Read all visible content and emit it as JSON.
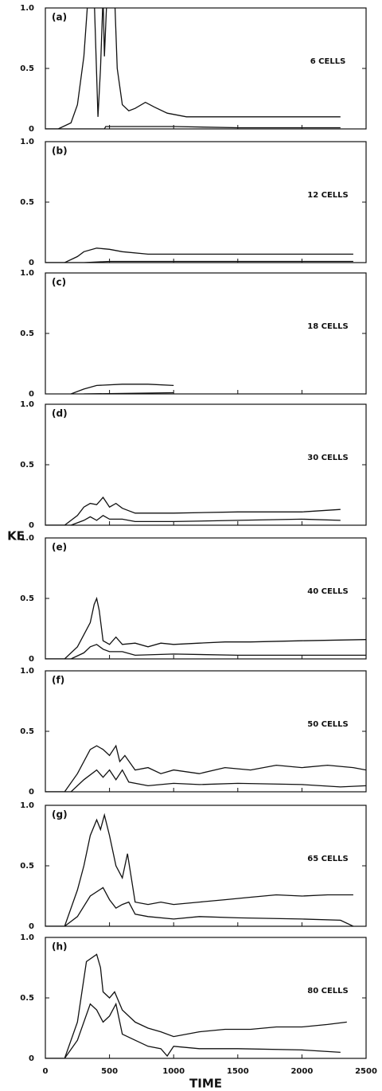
{
  "chart_data": [
    {
      "type": "line",
      "panel_label": "(a)",
      "annotation": "6 CELLS",
      "xlim": [
        0,
        2500
      ],
      "ylim": [
        0,
        1
      ],
      "xticks": [
        0,
        500,
        1000,
        1500,
        2000,
        2500
      ],
      "yticks": [
        0,
        0.5,
        {
          "value": 1,
          "label": "1.0"
        }
      ],
      "series": [
        {
          "color": "#111111",
          "x": [
            0,
            100,
            200,
            250,
            300,
            330,
            380,
            410,
            430,
            450,
            460,
            480,
            540,
            560,
            600,
            650,
            700,
            780,
            850,
            950,
            1100,
            1500,
            2000,
            2300
          ],
          "values": [
            0,
            0,
            0.05,
            0.2,
            0.6,
            1.05,
            1.1,
            0.1,
            0.5,
            1.1,
            0.6,
            1.1,
            1.1,
            0.5,
            0.2,
            0.15,
            0.17,
            0.22,
            0.18,
            0.13,
            0.1,
            0.1,
            0.1,
            0.1
          ]
        },
        {
          "color": "#111111",
          "x": [
            0,
            400,
            460,
            470,
            1000,
            1500,
            2300
          ],
          "values": [
            0,
            0,
            0,
            0.02,
            0.02,
            0.01,
            0.01
          ]
        }
      ]
    },
    {
      "type": "line",
      "panel_label": "(b)",
      "annotation": "12 CELLS",
      "xlim": [
        0,
        2500
      ],
      "ylim": [
        0,
        1
      ],
      "xticks": [
        0,
        500,
        1000,
        1500,
        2000,
        2500
      ],
      "yticks": [
        0,
        0.5,
        {
          "value": 1,
          "label": "1.0"
        }
      ],
      "series": [
        {
          "color": "#111111",
          "x": [
            0,
            150,
            250,
            300,
            400,
            500,
            600,
            800,
            1000,
            1500,
            2000,
            2400
          ],
          "values": [
            0,
            0,
            0.05,
            0.09,
            0.12,
            0.11,
            0.09,
            0.07,
            0.07,
            0.07,
            0.07,
            0.07
          ]
        },
        {
          "color": "#111111",
          "x": [
            0,
            300,
            500,
            2400
          ],
          "values": [
            0,
            0,
            0.01,
            0.01
          ]
        }
      ]
    },
    {
      "type": "line",
      "panel_label": "(c)",
      "annotation": "18 CELLS",
      "xlim": [
        0,
        2500
      ],
      "ylim": [
        0,
        1
      ],
      "xticks": [
        0,
        500,
        1000,
        1500,
        2000,
        2500
      ],
      "yticks": [
        0,
        0.5,
        {
          "value": 1,
          "label": "1.0"
        }
      ],
      "series": [
        {
          "color": "#111111",
          "x": [
            200,
            300,
            400,
            600,
            800,
            1000
          ],
          "values": [
            0,
            0.04,
            0.07,
            0.08,
            0.08,
            0.07
          ]
        },
        {
          "color": "#111111",
          "x": [
            300,
            1000
          ],
          "values": [
            0,
            0.01
          ]
        }
      ]
    },
    {
      "type": "line",
      "panel_label": "(d)",
      "annotation": "30 CELLS",
      "xlim": [
        0,
        2500
      ],
      "ylim": [
        0,
        1
      ],
      "xticks": [
        0,
        500,
        1000,
        1500,
        2000,
        2500
      ],
      "yticks": [
        0,
        0.5,
        {
          "value": 1,
          "label": "1.0"
        }
      ],
      "series": [
        {
          "color": "#111111",
          "x": [
            0,
            150,
            250,
            300,
            350,
            400,
            450,
            500,
            550,
            600,
            650,
            700,
            800,
            1000,
            1500,
            2000,
            2300
          ],
          "values": [
            0,
            0,
            0.08,
            0.15,
            0.18,
            0.17,
            0.23,
            0.15,
            0.18,
            0.14,
            0.12,
            0.1,
            0.1,
            0.1,
            0.11,
            0.11,
            0.13
          ]
        },
        {
          "color": "#111111",
          "x": [
            0,
            200,
            300,
            350,
            400,
            450,
            500,
            600,
            700,
            1000,
            1500,
            2000,
            2300
          ],
          "values": [
            0,
            0,
            0.04,
            0.07,
            0.04,
            0.08,
            0.05,
            0.05,
            0.03,
            0.03,
            0.04,
            0.05,
            0.04
          ]
        }
      ]
    },
    {
      "type": "line",
      "panel_label": "(e)",
      "annotation": "40 CELLS",
      "ylabel": "KE",
      "xlim": [
        0,
        2500
      ],
      "ylim": [
        0,
        1
      ],
      "xticks": [
        0,
        500,
        1000,
        1500,
        2000,
        2500
      ],
      "yticks": [
        0,
        0.5,
        {
          "value": 1,
          "label": "1.0"
        }
      ],
      "series": [
        {
          "color": "#111111",
          "x": [
            0,
            150,
            250,
            300,
            350,
            380,
            400,
            420,
            450,
            500,
            550,
            600,
            700,
            800,
            900,
            1000,
            1200,
            1400,
            1600,
            2000,
            2500
          ],
          "values": [
            0,
            0,
            0.1,
            0.2,
            0.3,
            0.45,
            0.5,
            0.4,
            0.15,
            0.12,
            0.18,
            0.12,
            0.13,
            0.1,
            0.13,
            0.12,
            0.13,
            0.14,
            0.14,
            0.15,
            0.16
          ]
        },
        {
          "color": "#111111",
          "x": [
            0,
            200,
            300,
            350,
            400,
            450,
            500,
            600,
            700,
            1000,
            1500,
            2000,
            2500
          ],
          "values": [
            0,
            0,
            0.05,
            0.1,
            0.12,
            0.08,
            0.06,
            0.06,
            0.03,
            0.04,
            0.03,
            0.03,
            0.03
          ]
        }
      ]
    },
    {
      "type": "line",
      "panel_label": "(f)",
      "annotation": "50 CELLS",
      "xlim": [
        0,
        2500
      ],
      "ylim": [
        0,
        1
      ],
      "xticks": [
        0,
        500,
        1000,
        1500,
        2000,
        2500
      ],
      "yticks": [
        0,
        0.5,
        {
          "value": 1,
          "label": "1.0"
        }
      ],
      "series": [
        {
          "color": "#111111",
          "x": [
            0,
            150,
            250,
            350,
            400,
            450,
            500,
            550,
            580,
            620,
            700,
            800,
            900,
            1000,
            1200,
            1400,
            1600,
            1800,
            2000,
            2200,
            2400,
            2500
          ],
          "values": [
            0,
            0,
            0.15,
            0.35,
            0.38,
            0.35,
            0.3,
            0.38,
            0.25,
            0.3,
            0.18,
            0.2,
            0.15,
            0.18,
            0.15,
            0.2,
            0.18,
            0.22,
            0.2,
            0.22,
            0.2,
            0.18
          ]
        },
        {
          "color": "#111111",
          "x": [
            0,
            200,
            300,
            400,
            450,
            500,
            550,
            600,
            650,
            800,
            1000,
            1200,
            1500,
            2000,
            2300,
            2500
          ],
          "values": [
            0,
            0,
            0.1,
            0.18,
            0.12,
            0.18,
            0.1,
            0.18,
            0.08,
            0.05,
            0.07,
            0.06,
            0.07,
            0.06,
            0.04,
            0.05
          ]
        }
      ]
    },
    {
      "type": "line",
      "panel_label": "(g)",
      "annotation": "65 CELLS",
      "xlim": [
        0,
        2500
      ],
      "ylim": [
        0,
        1
      ],
      "xticks": [
        0,
        500,
        1000,
        1500,
        2000,
        2500
      ],
      "yticks": [
        0,
        0.5,
        {
          "value": 1,
          "label": "1.0"
        }
      ],
      "series": [
        {
          "color": "#111111",
          "x": [
            0,
            150,
            250,
            300,
            350,
            400,
            430,
            460,
            500,
            550,
            600,
            640,
            670,
            700,
            800,
            900,
            1000,
            1200,
            1400,
            1600,
            1800,
            2000,
            2200,
            2400
          ],
          "values": [
            0,
            0,
            0.3,
            0.5,
            0.75,
            0.88,
            0.8,
            0.92,
            0.75,
            0.5,
            0.4,
            0.6,
            0.4,
            0.2,
            0.18,
            0.2,
            0.18,
            0.2,
            0.22,
            0.24,
            0.26,
            0.25,
            0.26,
            0.26
          ]
        },
        {
          "color": "#111111",
          "x": [
            0,
            150,
            250,
            350,
            450,
            500,
            550,
            600,
            650,
            700,
            800,
            1000,
            1200,
            1500,
            2000,
            2300,
            2400
          ],
          "values": [
            0,
            0,
            0.08,
            0.25,
            0.32,
            0.22,
            0.15,
            0.18,
            0.2,
            0.1,
            0.08,
            0.06,
            0.08,
            0.07,
            0.06,
            0.05,
            0
          ]
        }
      ]
    },
    {
      "type": "line",
      "panel_label": "(h)",
      "annotation": "80 CELLS",
      "xlabel": "TIME",
      "xtick_labels": true,
      "xlim": [
        0,
        2500
      ],
      "ylim": [
        0,
        1
      ],
      "xticks": [
        0,
        500,
        1000,
        1500,
        2000,
        2500
      ],
      "yticks": [
        0,
        0.5,
        {
          "value": 1,
          "label": "1.0"
        }
      ],
      "series": [
        {
          "color": "#111111",
          "x": [
            0,
            150,
            250,
            320,
            400,
            430,
            450,
            500,
            540,
            600,
            700,
            800,
            900,
            1000,
            1200,
            1400,
            1600,
            1800,
            2000,
            2200,
            2350
          ],
          "values": [
            0,
            0,
            0.3,
            0.8,
            0.86,
            0.75,
            0.55,
            0.5,
            0.55,
            0.4,
            0.3,
            0.25,
            0.22,
            0.18,
            0.22,
            0.24,
            0.24,
            0.26,
            0.26,
            0.28,
            0.3
          ]
        },
        {
          "color": "#111111",
          "x": [
            0,
            150,
            250,
            350,
            400,
            450,
            500,
            550,
            600,
            700,
            800,
            900,
            950,
            1000,
            1200,
            1500,
            2000,
            2300
          ],
          "values": [
            0,
            0,
            0.15,
            0.45,
            0.4,
            0.3,
            0.35,
            0.45,
            0.2,
            0.15,
            0.1,
            0.08,
            0.02,
            0.1,
            0.08,
            0.08,
            0.07,
            0.05
          ]
        }
      ]
    }
  ]
}
